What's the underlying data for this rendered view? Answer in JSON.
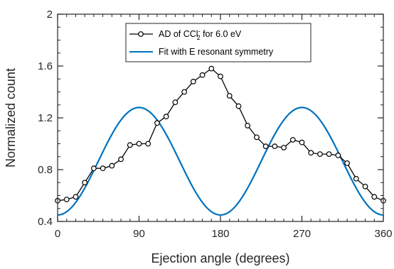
{
  "chart_data": {
    "type": "line",
    "xlabel": "Ejection angle (degrees)",
    "ylabel": "Normalized count",
    "xlim": [
      0,
      360
    ],
    "ylim": [
      0.4,
      2
    ],
    "xticks": [
      0,
      90,
      180,
      270,
      360
    ],
    "yticks": [
      0.4,
      0.8,
      1.2,
      1.6,
      2
    ],
    "xtick_labels": [
      "0",
      "90",
      "180",
      "270",
      "360"
    ],
    "ytick_labels": [
      "0.4",
      "0.8",
      "1.2",
      "1.6",
      "2"
    ],
    "grid": false,
    "legend_position": "top-right",
    "series": [
      {
        "name": "AD of CCl2- for 6.0 eV",
        "legend": {
          "prefix": "AD of CCl",
          "sup": "-",
          "sub": "2",
          "suffix": " for 6.0 eV"
        },
        "color": "#000000",
        "marker": "circle-open",
        "x": [
          0,
          10,
          20,
          30,
          40,
          50,
          60,
          70,
          80,
          90,
          100,
          110,
          120,
          130,
          140,
          150,
          160,
          170,
          180,
          190,
          200,
          210,
          220,
          230,
          240,
          250,
          260,
          270,
          280,
          290,
          300,
          310,
          320,
          330,
          340,
          350,
          360
        ],
        "y": [
          0.56,
          0.57,
          0.59,
          0.7,
          0.81,
          0.81,
          0.83,
          0.88,
          0.99,
          1.0,
          1.0,
          1.16,
          1.21,
          1.32,
          1.4,
          1.48,
          1.53,
          1.58,
          1.52,
          1.37,
          1.29,
          1.14,
          1.05,
          0.98,
          0.98,
          0.97,
          1.03,
          1.01,
          0.93,
          0.92,
          0.92,
          0.91,
          0.85,
          0.73,
          0.67,
          0.59,
          0.56
        ]
      },
      {
        "name": "Fit with E resonant symmetry",
        "color": "#0072BD",
        "model": {
          "form": "a + b*sin^2(x)",
          "a": 0.45,
          "b": 0.83,
          "samples": 181
        }
      }
    ]
  }
}
